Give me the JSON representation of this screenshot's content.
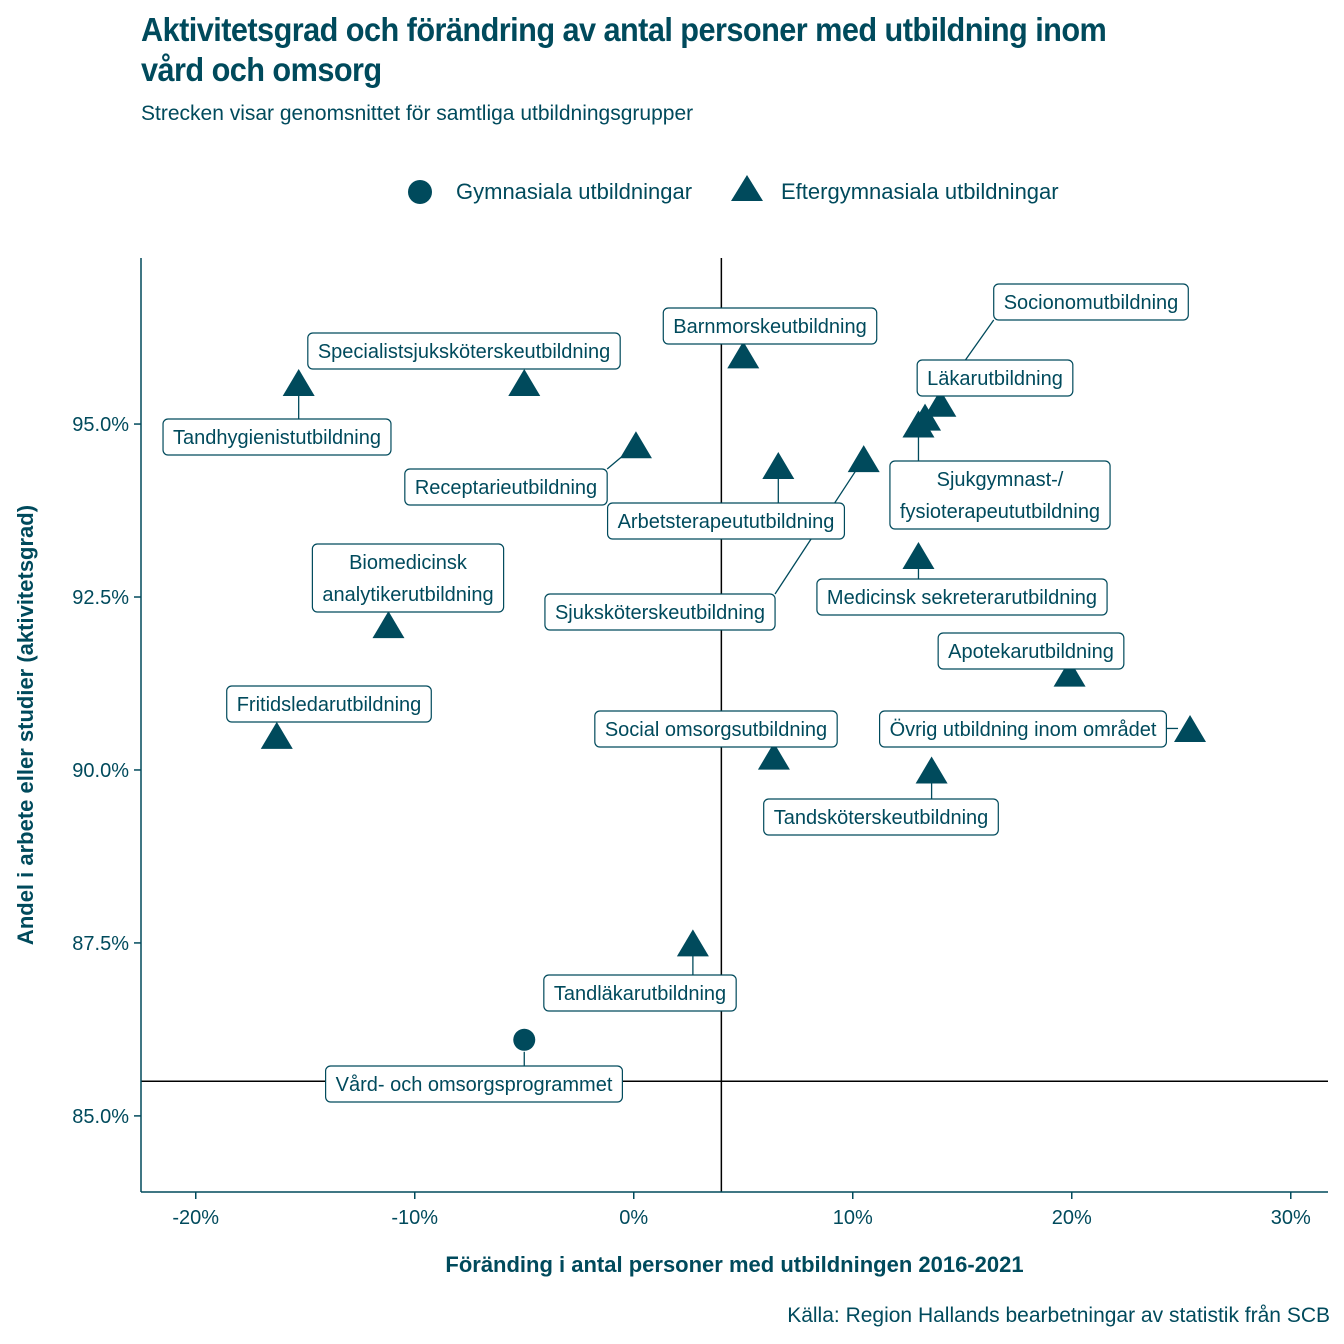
{
  "title": "Aktivitetsgrad och förändring av antal personer med utbildning inom vård och omsorg",
  "subtitle": "Strecken visar genomsnittet för samtliga utbildningsgrupper",
  "caption": "Källa: Region Hallands bearbetningar av statistik från SCB",
  "legend": {
    "gymnasiala": "Gymnasiala utbildningar",
    "eftergymnasiala": "Eftergymnasiala utbildningar"
  },
  "colors": {
    "main": "#004a5c",
    "axis": "#000000"
  },
  "chart_data": {
    "type": "scatter",
    "xlabel": "Föränding i antal personer med utbildningen 2016-2021",
    "ylabel": "Andel i arbete eller studier (aktivitetsgrad)",
    "xlim": [
      -22.5,
      31.7
    ],
    "ylim": [
      83.9,
      97.4
    ],
    "x_ticks": [
      -20,
      -10,
      0,
      10,
      20,
      30
    ],
    "x_tick_labels": [
      "-20%",
      "-10%",
      "0%",
      "10%",
      "20%",
      "30%"
    ],
    "y_ticks": [
      85,
      87.5,
      90,
      92.5,
      95
    ],
    "y_tick_labels": [
      "85.0%",
      "87.5%",
      "90.0%",
      "92.5%",
      "95.0%"
    ],
    "reference_lines": {
      "x_mean": 4,
      "y_mean": 85.5
    },
    "series": [
      {
        "name": "Gymnasiala utbildningar",
        "marker": "circle",
        "points": [
          {
            "label": "Vård- och omsorgsprogrammet",
            "x": -5.0,
            "y": 86.1
          }
        ]
      },
      {
        "name": "Eftergymnasiala utbildningar",
        "marker": "triangle",
        "points": [
          {
            "label": "Barnmorskeutbildning",
            "x": 5.0,
            "y": 96.0
          },
          {
            "label": "Specialistsjuksköterskeutbildning",
            "x": -5.0,
            "y": 95.6
          },
          {
            "label": "Tandhygienistutbildning",
            "x": -15.3,
            "y": 95.6
          },
          {
            "label": "Socionomutbildning",
            "x": 13.3,
            "y": 95.1
          },
          {
            "label": "Läkarutbildning",
            "x": 14.0,
            "y": 95.3
          },
          {
            "label": "Sjukgymnast-/\nfysioterapeututbildning",
            "x": 13.0,
            "y": 95.0
          },
          {
            "label": "Receptarieutbildning",
            "x": 0.1,
            "y": 94.7
          },
          {
            "label": "Arbetsterapeututbildning",
            "x": 6.6,
            "y": 94.4
          },
          {
            "label": "Sjuksköterskeutbildning",
            "x": 10.5,
            "y": 94.5
          },
          {
            "label": "Medicinsk sekreterarutbildning",
            "x": 13.0,
            "y": 93.1
          },
          {
            "label": "Biomedicinsk\nanalytikerutbildning",
            "x": -11.2,
            "y": 92.1
          },
          {
            "label": "Apotekarutbildning",
            "x": 19.9,
            "y": 91.4
          },
          {
            "label": "Fritidsledarutbildning",
            "x": -16.3,
            "y": 90.5
          },
          {
            "label": "Övrig utbildning inom området",
            "x": 25.4,
            "y": 90.6
          },
          {
            "label": "Social omsorgsutbildning",
            "x": 6.4,
            "y": 90.2
          },
          {
            "label": "Tandsköterskeutbildning",
            "x": 13.6,
            "y": 90.0
          },
          {
            "label": "Tandläkarutbildning",
            "x": 2.7,
            "y": 87.5
          }
        ]
      }
    ]
  }
}
